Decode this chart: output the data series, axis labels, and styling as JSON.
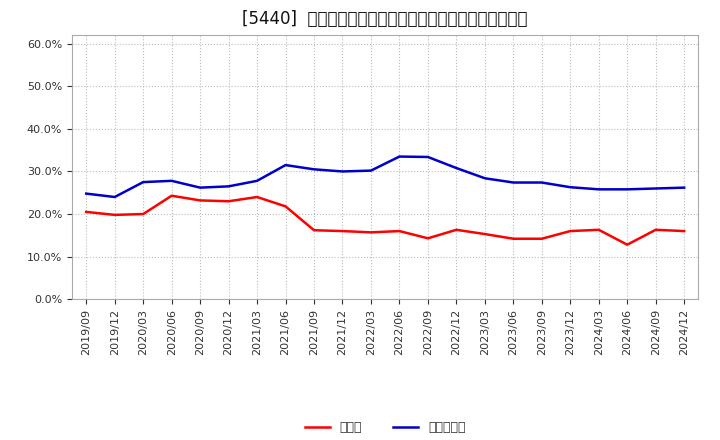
{
  "title": "[5440]  現預金、有利子負債の総資産に対する比率の推移",
  "x_labels": [
    "2019/09",
    "2019/12",
    "2020/03",
    "2020/06",
    "2020/09",
    "2020/12",
    "2021/03",
    "2021/06",
    "2021/09",
    "2021/12",
    "2022/03",
    "2022/06",
    "2022/09",
    "2022/12",
    "2023/03",
    "2023/06",
    "2023/09",
    "2023/12",
    "2024/03",
    "2024/06",
    "2024/09",
    "2024/12"
  ],
  "cash": [
    0.205,
    0.198,
    0.2,
    0.243,
    0.232,
    0.23,
    0.24,
    0.218,
    0.162,
    0.16,
    0.157,
    0.16,
    0.143,
    0.163,
    0.153,
    0.142,
    0.142,
    0.16,
    0.163,
    0.128,
    0.163,
    0.16
  ],
  "interest_bearing_debt": [
    0.248,
    0.24,
    0.275,
    0.278,
    0.262,
    0.265,
    0.278,
    0.315,
    0.305,
    0.3,
    0.302,
    0.335,
    0.334,
    0.308,
    0.284,
    0.274,
    0.274,
    0.263,
    0.258,
    0.258,
    0.26,
    0.262
  ],
  "cash_color": "#ff0000",
  "debt_color": "#0000cc",
  "background_color": "#ffffff",
  "grid_color": "#bbbbbb",
  "ylim": [
    0.0,
    0.62
  ],
  "yticks": [
    0.0,
    0.1,
    0.2,
    0.3,
    0.4,
    0.5,
    0.6
  ],
  "legend_cash": "現預金",
  "legend_debt": "有利子負債",
  "title_fontsize": 12,
  "legend_fontsize": 9,
  "tick_fontsize": 8,
  "line_width": 1.8
}
